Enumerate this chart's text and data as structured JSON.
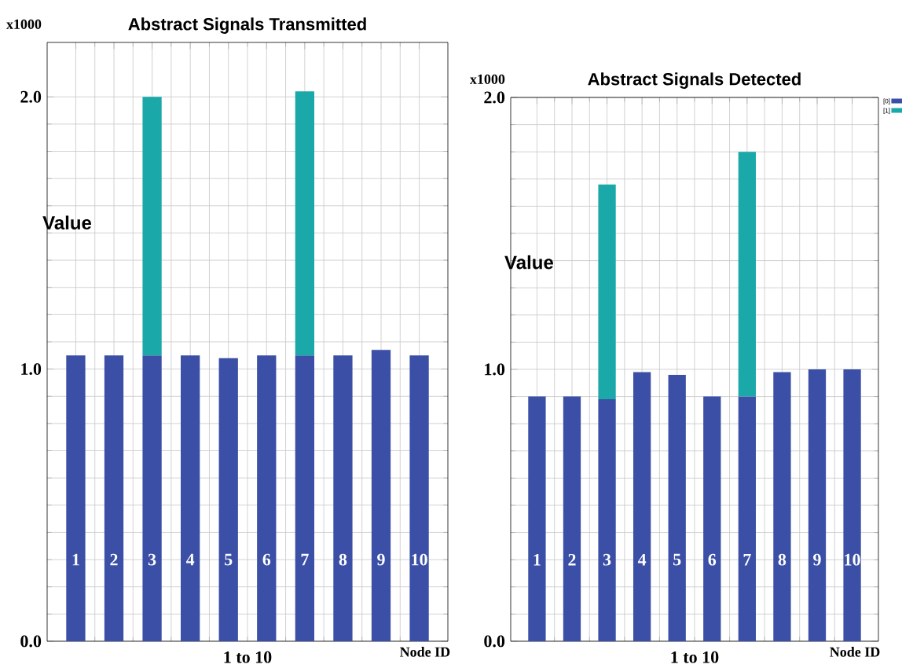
{
  "chart_data": [
    {
      "type": "bar",
      "title": "Abstract Signals Transmitted",
      "xlabel": "1 to 10",
      "ylabel": "Value",
      "stacked": true,
      "grid": true,
      "legend": false,
      "categories": [
        "1",
        "2",
        "3",
        "4",
        "5",
        "6",
        "7",
        "8",
        "9",
        "10"
      ],
      "series": [
        {
          "color": "#3a4fa5",
          "values": [
            1.05,
            1.05,
            1.05,
            1.05,
            1.04,
            1.05,
            1.05,
            1.05,
            1.07,
            1.05
          ]
        },
        {
          "color": "#1aa8a8",
          "values": [
            null,
            null,
            0.95,
            null,
            null,
            null,
            0.97,
            null,
            null,
            null
          ]
        }
      ],
      "ylim": [
        0,
        2.2
      ],
      "yticks": [
        {
          "value": 0,
          "label": "0.0"
        },
        {
          "value": 1,
          "label": "1.0"
        },
        {
          "value": 2,
          "label": "2.0"
        }
      ],
      "annotations": [
        "x1000",
        "Node ID"
      ]
    },
    {
      "type": "bar",
      "title": "Abstract Signals Detected",
      "xlabel": "1 to 10",
      "ylabel": "Value",
      "stacked": true,
      "grid": true,
      "legend": "top right",
      "categories": [
        "1",
        "2",
        "3",
        "4",
        "5",
        "6",
        "7",
        "8",
        "9",
        "10"
      ],
      "series": [
        {
          "name": "[0]",
          "color": "#3a4fa5",
          "values": [
            0.9,
            0.9,
            0.89,
            0.99,
            0.98,
            0.9,
            0.9,
            0.99,
            1.0,
            1.0
          ]
        },
        {
          "name": "[1]",
          "color": "#1aa8a8",
          "values": [
            null,
            null,
            0.79,
            null,
            null,
            null,
            0.9,
            null,
            null,
            null
          ]
        }
      ],
      "ylim": [
        0,
        2.0
      ],
      "yticks": [
        {
          "value": 0,
          "label": "0.0"
        },
        {
          "value": 1,
          "label": "1.0"
        },
        {
          "value": 2,
          "label": "2.0"
        }
      ],
      "annotations": [
        "x1000",
        "Node ID"
      ]
    }
  ]
}
